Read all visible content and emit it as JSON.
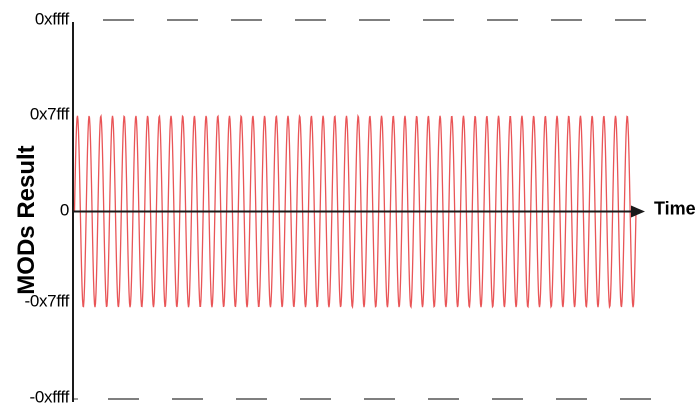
{
  "chart_data": {
    "type": "line",
    "title": "",
    "xlabel": "Time",
    "ylabel": "MODs Result",
    "ylim": [
      -65535,
      65535
    ],
    "grid": false,
    "legend": "none",
    "axis_color": "#1a1a1a",
    "y_ticks": [
      {
        "label": "0xffff",
        "value": 65535
      },
      {
        "label": "0x7fff",
        "value": 32767
      },
      {
        "label": "0",
        "value": 0
      },
      {
        "label": "-0x7fff",
        "value": -32767
      },
      {
        "label": "-0xffff",
        "value": -65535
      }
    ],
    "guides": [
      {
        "at_label": "0xffff",
        "value": 65535,
        "style": "dashed",
        "color": "#7f7f7f"
      },
      {
        "at_label": "-0xffff",
        "value": -65535,
        "style": "dashed",
        "color": "#7f7f7f"
      }
    ],
    "series": [
      {
        "name": "MODs Result waveform",
        "waveform": "sine",
        "amplitude_value": 32767,
        "amplitude_label": "0x7fff",
        "offset": 0,
        "cycles_shown": 48,
        "color": "#e95557"
      }
    ],
    "x_axis": {
      "label": "Time",
      "arrow": true
    }
  }
}
